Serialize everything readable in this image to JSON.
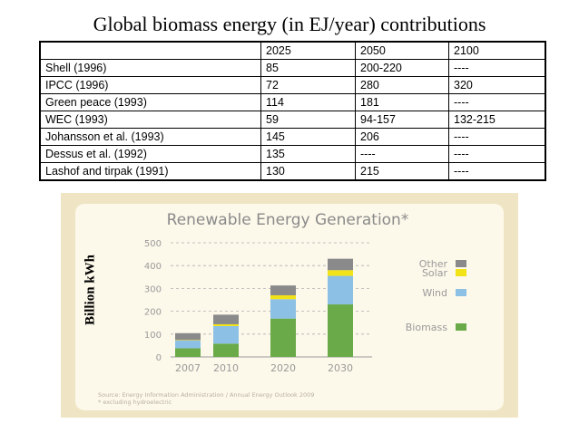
{
  "slide_title": "Global biomass energy (in EJ/year) contributions",
  "table": {
    "header": [
      "",
      "2025",
      "2050",
      "2100"
    ],
    "rows": [
      [
        "Shell (1996)",
        "85",
        "200-220",
        "----"
      ],
      [
        "IPCC (1996)",
        "72",
        "280",
        "320"
      ],
      [
        "Green peace (1993)",
        "114",
        "181",
        "----"
      ],
      [
        "WEC (1993)",
        "59",
        "94-157",
        "132-215"
      ],
      [
        "Johansson et al. (1993)",
        "145",
        "206",
        "----"
      ],
      [
        "Dessus et al. (1992)",
        "135",
        "----",
        "----"
      ],
      [
        "Lashof and tirpak (1991)",
        "130",
        "215",
        "----"
      ]
    ]
  },
  "colors": {
    "biomass": "#6aaa48",
    "wind": "#8cc1e5",
    "solar": "#f2e319",
    "other": "#8a8a8a",
    "title": "#8a8a8a",
    "axis_text": "#9a9a9a"
  },
  "chart_data": {
    "type": "bar",
    "stacked": true,
    "title": "Renewable Energy Generation*",
    "ylabel": "Billion kWh",
    "ylim": [
      0,
      500
    ],
    "yticks": [
      0,
      100,
      200,
      300,
      400,
      500
    ],
    "categories": [
      "2007",
      "2010",
      "2020",
      "2030"
    ],
    "series": [
      {
        "name": "Biomass",
        "values": [
          38,
          58,
          168,
          230
        ]
      },
      {
        "name": "Wind",
        "values": [
          34,
          77,
          85,
          125
        ]
      },
      {
        "name": "Solar",
        "values": [
          2,
          8,
          17,
          25
        ]
      },
      {
        "name": "Other",
        "values": [
          30,
          42,
          43,
          50
        ]
      }
    ],
    "legend": {
      "placement": "right",
      "order": [
        "Other",
        "Solar",
        "Wind",
        "Biomass"
      ]
    },
    "grid": true,
    "source_note": "Source: Energy Information Administration / Annual Energy Outlook 2009",
    "footnote": "* excluding hydroelectric"
  }
}
